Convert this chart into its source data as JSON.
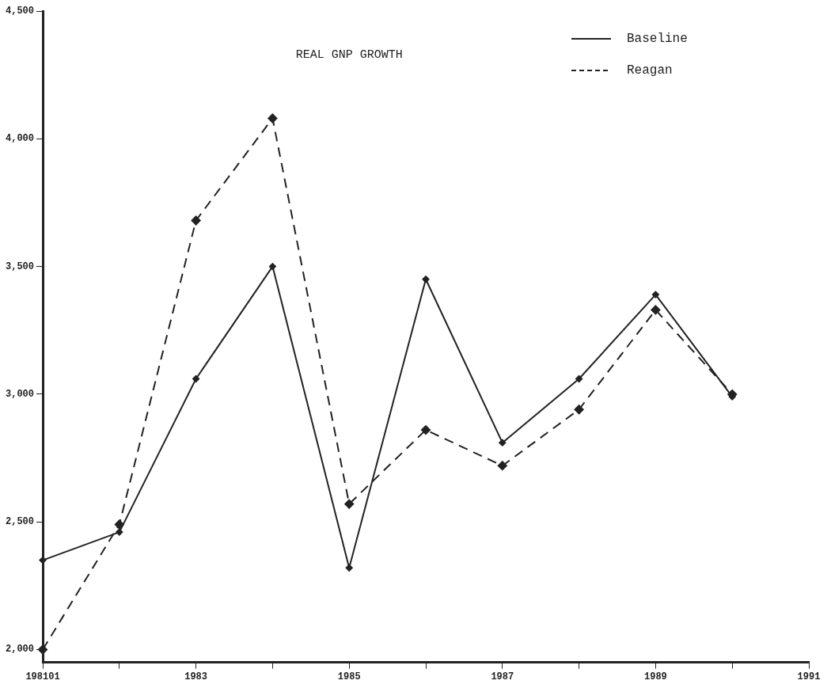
{
  "chart_data": {
    "type": "line",
    "title": "REAL GNP GROWTH",
    "categories": [
      "198101",
      null,
      "1983",
      null,
      "1985",
      null,
      "1987",
      null,
      "1989",
      null,
      "1991"
    ],
    "ylim": [
      1950,
      4500
    ],
    "yticks": [
      {
        "value": 2000,
        "label": "2,000"
      },
      {
        "value": 2500,
        "label": "2,500"
      },
      {
        "value": 3000,
        "label": "3,000"
      },
      {
        "value": 3500,
        "label": "3,500"
      },
      {
        "value": 4000,
        "label": "4,000"
      },
      {
        "value": 4500,
        "label": "4,500"
      }
    ],
    "series": [
      {
        "name": "Baseline",
        "color": "#222222",
        "line_style": "solid",
        "values": [
          2350,
          2460,
          3060,
          3500,
          2320,
          3450,
          2810,
          3060,
          3390,
          2990,
          null
        ]
      },
      {
        "name": "Reagan",
        "color": "#222222",
        "line_style": "dashed",
        "values": [
          2000,
          2490,
          3680,
          4080,
          2570,
          2860,
          2720,
          2940,
          3330,
          3000,
          null
        ]
      }
    ],
    "marker": "diamond",
    "legend": "top right",
    "grid": false
  }
}
